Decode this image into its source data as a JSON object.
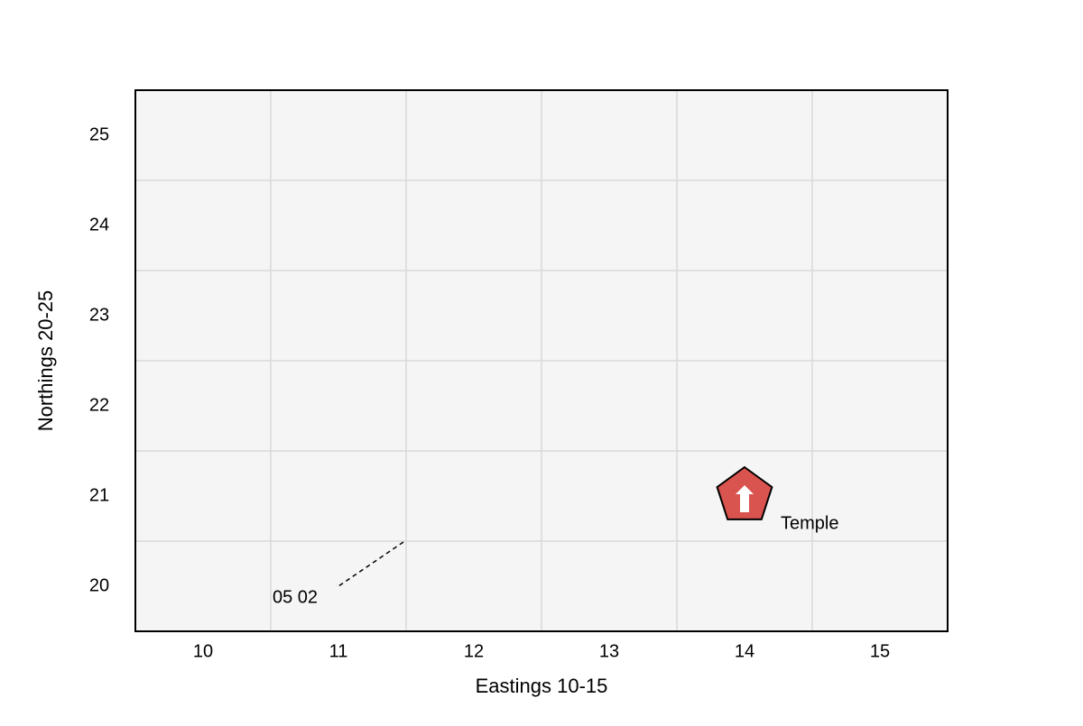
{
  "chart_data": {
    "type": "map",
    "x_label": "Eastings 10-15",
    "y_label": "Northings 20-25",
    "xlim": [
      9.5,
      15.5
    ],
    "ylim": [
      19.5,
      25.5
    ],
    "xticks": [
      10,
      11,
      12,
      13,
      14,
      15
    ],
    "yticks": [
      20,
      21,
      22,
      23,
      24,
      25
    ],
    "grid": true,
    "background": "#f5f5f5",
    "points": [
      {
        "label": "Temple",
        "x": 14,
        "y": 21,
        "color": "#d9534f"
      }
    ],
    "annotations": [
      {
        "text": "05 02",
        "x": 11.5,
        "y": 20.5,
        "color": "#a50f15"
      }
    ]
  }
}
